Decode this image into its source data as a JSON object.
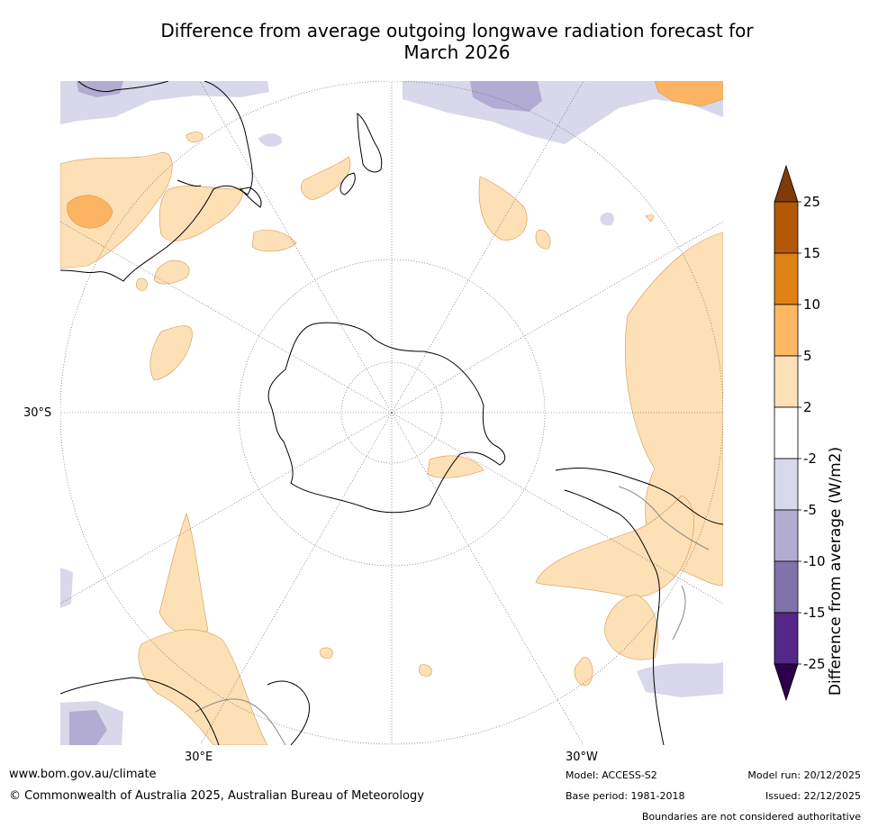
{
  "title": {
    "line1": "Difference from average outgoing longwave radiation forecast for",
    "line2": "March 2026"
  },
  "map": {
    "projection": "south-polar-stereographic",
    "labels": {
      "lat_30s": "30°S",
      "lon_30e": "30°E",
      "lon_30w": "30°W"
    },
    "fill_colors": {
      "positive_light": "#fde0b6",
      "positive_mid": "#fdb462",
      "positive_edge": "#d19a52",
      "negative_light": "#d8d8ea",
      "negative_mid": "#b2abd2",
      "coast": "#000000",
      "boundary": "#888888"
    }
  },
  "colorbar": {
    "title": "Difference from average (W/m2)",
    "ticks": [
      "25",
      "15",
      "10",
      "5",
      "2",
      "-2",
      "-5",
      "-10",
      "-15",
      "-25"
    ],
    "segments": [
      {
        "label": "15 to 25",
        "color": "#b35806"
      },
      {
        "label": "10 to 15",
        "color": "#e08214"
      },
      {
        "label": "5 to 10",
        "color": "#fdb863"
      },
      {
        "label": "2 to 5",
        "color": "#fee0b6"
      },
      {
        "label": "-2 to 2",
        "color": "#ffffff"
      },
      {
        "label": "-5 to -2",
        "color": "#d8daeb"
      },
      {
        "label": "-10 to -5",
        "color": "#b2abd2"
      },
      {
        "label": "-15 to -10",
        "color": "#8073ac"
      },
      {
        "label": "-25 to -15",
        "color": "#542788"
      }
    ],
    "extend_top_color": "#7f3b08",
    "extend_bottom_color": "#2d004b"
  },
  "footer": {
    "website": "www.bom.gov.au/climate",
    "copyright": "© Commonwealth of Australia 2025, Australian Bureau of Meteorology",
    "model": "Model: ACCESS-S2",
    "base_period": "Base period: 1981-2018",
    "model_run": "Model run: 20/12/2025",
    "issued": "Issued: 22/12/2025",
    "disclaimer": "Boundaries are not considered authoritative"
  }
}
